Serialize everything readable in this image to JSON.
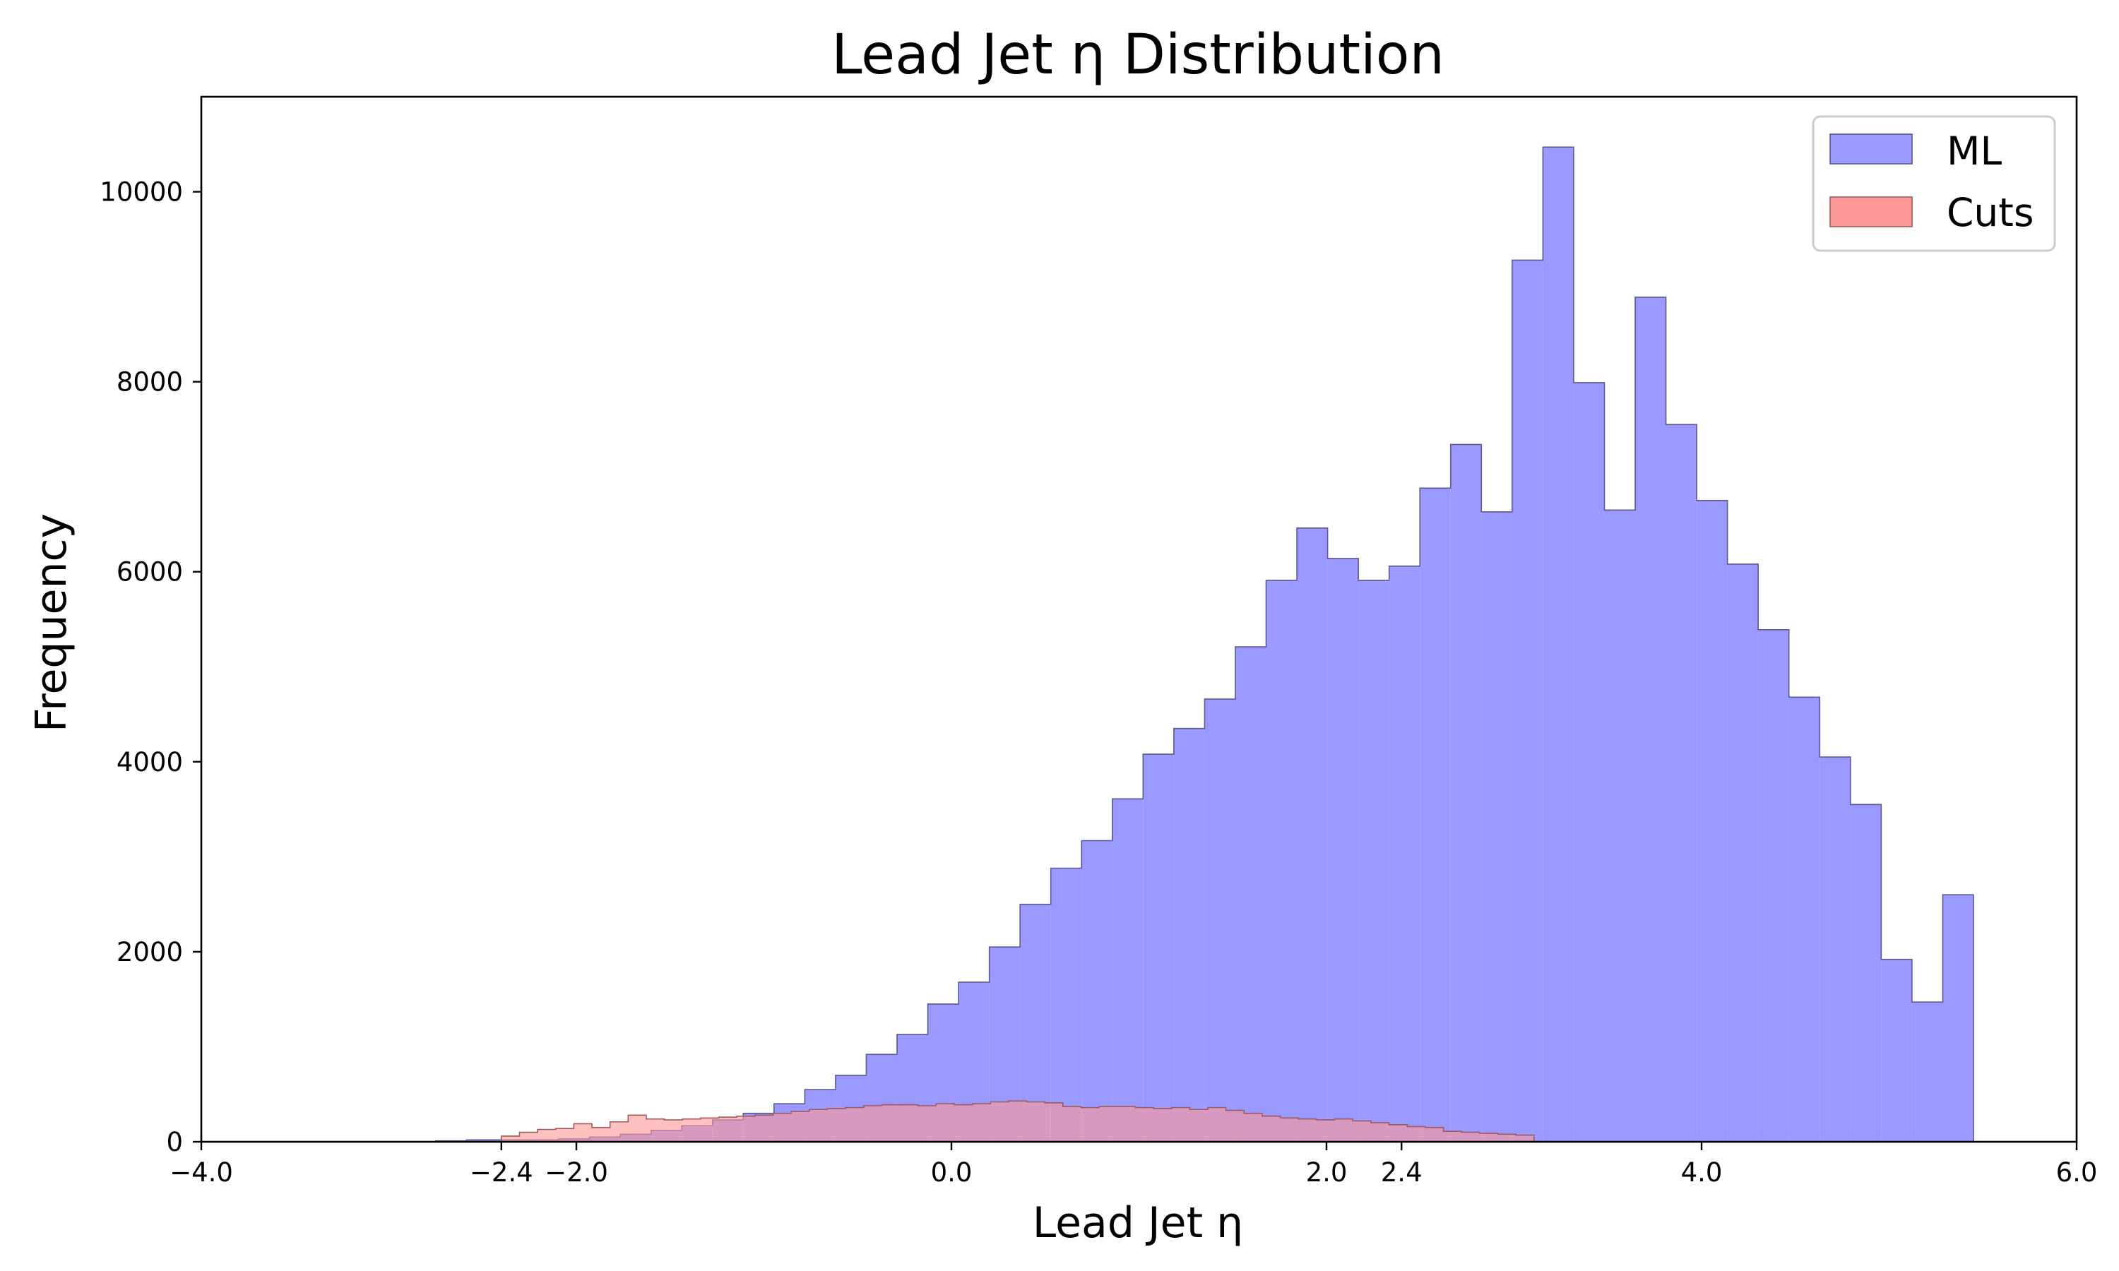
{
  "chart_data": {
    "type": "histogram",
    "title": "Lead Jet η Distribution",
    "xlabel": "Lead Jet η",
    "ylabel": "Frequency",
    "xlim": [
      -4.0,
      6.0
    ],
    "ylim": [
      0,
      11000
    ],
    "x_ticks": [
      {
        "value": -4.0,
        "label": "−4.0"
      },
      {
        "value": -2.4,
        "label": "−2.4"
      },
      {
        "value": -2.0,
        "label": "−2.0"
      },
      {
        "value": 0.0,
        "label": "0.0"
      },
      {
        "value": 2.0,
        "label": "2.0"
      },
      {
        "value": 2.4,
        "label": "2.4"
      },
      {
        "value": 4.0,
        "label": "4.0"
      },
      {
        "value": 6.0,
        "label": "6.0"
      }
    ],
    "y_ticks": [
      {
        "value": 0,
        "label": "0"
      },
      {
        "value": 2000,
        "label": "2000"
      },
      {
        "value": 4000,
        "label": "4000"
      },
      {
        "value": 6000,
        "label": "6000"
      },
      {
        "value": 8000,
        "label": "8000"
      },
      {
        "value": 10000,
        "label": "10000"
      }
    ],
    "grid": false,
    "legend_position": "top-right",
    "series": [
      {
        "name": "ML",
        "color": "#9999ff",
        "edge_color": "#5a5a8c",
        "bin_start": -2.75,
        "bin_width": 0.164,
        "values": [
          10,
          20,
          20,
          20,
          30,
          50,
          80,
          120,
          170,
          230,
          300,
          400,
          550,
          700,
          920,
          1130,
          1450,
          1680,
          2050,
          2500,
          2880,
          3170,
          3610,
          4080,
          4350,
          4660,
          5210,
          5910,
          6460,
          6140,
          5910,
          6060,
          6880,
          7340,
          6630,
          9280,
          10470,
          7990,
          6650,
          8890,
          7550,
          6750,
          6080,
          5390,
          4680,
          4050,
          3550,
          1920,
          1470,
          2600
        ]
      },
      {
        "name": "Cuts",
        "color": "#ff9999",
        "edge_color": "#a05a5a",
        "bin_start": -2.4,
        "bin_width": 0.0966,
        "values": [
          60,
          100,
          130,
          140,
          190,
          150,
          210,
          280,
          240,
          230,
          240,
          250,
          260,
          270,
          280,
          300,
          320,
          340,
          350,
          360,
          380,
          390,
          390,
          380,
          400,
          390,
          400,
          420,
          430,
          420,
          410,
          370,
          360,
          370,
          370,
          360,
          350,
          360,
          340,
          360,
          330,
          300,
          270,
          250,
          240,
          230,
          240,
          220,
          200,
          180,
          160,
          150,
          110,
          100,
          90,
          80,
          70
        ]
      }
    ]
  }
}
